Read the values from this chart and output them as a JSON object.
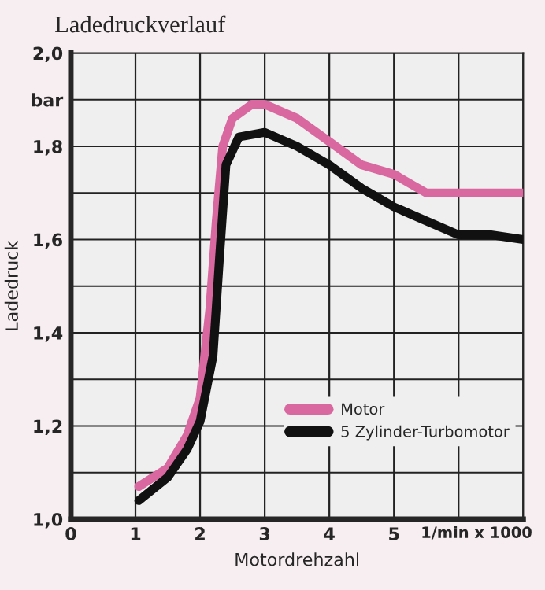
{
  "chart_data": {
    "type": "line",
    "title": "Ladedruckverlauf",
    "xlabel": "Motordrehzahl",
    "ylabel": "Ladedruck",
    "annotations": [
      "1/min x 1000"
    ],
    "series": [
      {
        "name": "Motor",
        "color": "#d8689f",
        "x": [
          1.05,
          1.5,
          1.8,
          2.0,
          2.15,
          2.25,
          2.35,
          2.5,
          2.8,
          3.0,
          3.5,
          4.0,
          4.5,
          5.0,
          5.5,
          6.0,
          7.0
        ],
        "values": [
          1.07,
          1.11,
          1.18,
          1.26,
          1.45,
          1.64,
          1.8,
          1.86,
          1.89,
          1.89,
          1.86,
          1.81,
          1.76,
          1.74,
          1.7,
          1.7,
          1.7
        ]
      },
      {
        "name": "5 Zylinder-Turbomotor",
        "color": "#111111",
        "x": [
          1.05,
          1.5,
          1.8,
          2.0,
          2.2,
          2.3,
          2.4,
          2.6,
          3.0,
          3.5,
          4.0,
          4.5,
          5.0,
          5.5,
          6.0,
          6.5,
          7.0
        ],
        "values": [
          1.04,
          1.09,
          1.15,
          1.21,
          1.35,
          1.56,
          1.76,
          1.82,
          1.83,
          1.8,
          1.76,
          1.71,
          1.67,
          1.64,
          1.61,
          1.61,
          1.6
        ]
      }
    ],
    "xlim": [
      0,
      7
    ],
    "xticks": [
      0,
      1,
      2,
      3,
      4,
      5,
      {
        "value": 6,
        "label": null
      },
      {
        "value": 7,
        "label": null
      }
    ],
    "ylim": [
      1.0,
      2.0
    ],
    "yticks": [
      {
        "value": 1.0,
        "label": "1,0"
      },
      {
        "value": 1.1,
        "label": null
      },
      {
        "value": 1.2,
        "label": "1,2"
      },
      {
        "value": 1.3,
        "label": null
      },
      {
        "value": 1.4,
        "label": "1,4"
      },
      {
        "value": 1.5,
        "label": null
      },
      {
        "value": 1.6,
        "label": "1,6"
      },
      {
        "value": 1.7,
        "label": null
      },
      {
        "value": 1.8,
        "label": "1,8"
      },
      {
        "value": 1.9,
        "label": "bar"
      },
      {
        "value": 2.0,
        "label": "2,0"
      }
    ],
    "grid": true,
    "legend": "bottom right",
    "marker": "none",
    "line_style": "solid"
  }
}
